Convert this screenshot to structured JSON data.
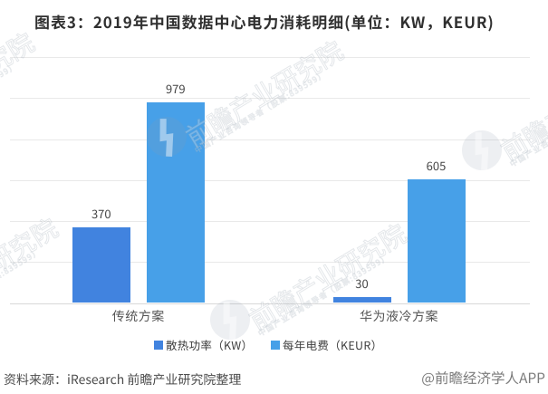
{
  "title": "图表3：2019年中国数据中心电力消耗明细(单位：KW，KEUR)",
  "chart_data": {
    "type": "bar",
    "title": "2019年中国数据中心电力消耗明细",
    "unit_note": "单位：KW，KEUR",
    "categories": [
      "传统方案",
      "华为液冷方案"
    ],
    "series": [
      {
        "name": "散热功率（KW）",
        "color": "#4183df",
        "values": [
          370,
          30
        ]
      },
      {
        "name": "每年电费（KEUR）",
        "color": "#47a0e8",
        "values": [
          979,
          605
        ]
      }
    ],
    "xlabel": "",
    "ylabel": "",
    "ylim": [
      0,
      1200
    ],
    "grid_step": 200,
    "y_axis_labels_visible": false,
    "grid": "horizontal",
    "legend_position": "bottom",
    "grid_color": "#e9e9e9",
    "axis_color": "#d9d9d9"
  },
  "footer": {
    "source": "资料来源：iResearch 前瞻产业研究院整理",
    "credit": "@前瞻经济学人APP"
  },
  "watermark": {
    "brand": "前瞻产业研究院",
    "slogan": "中国产业咨询领导者（股票:839599）"
  }
}
